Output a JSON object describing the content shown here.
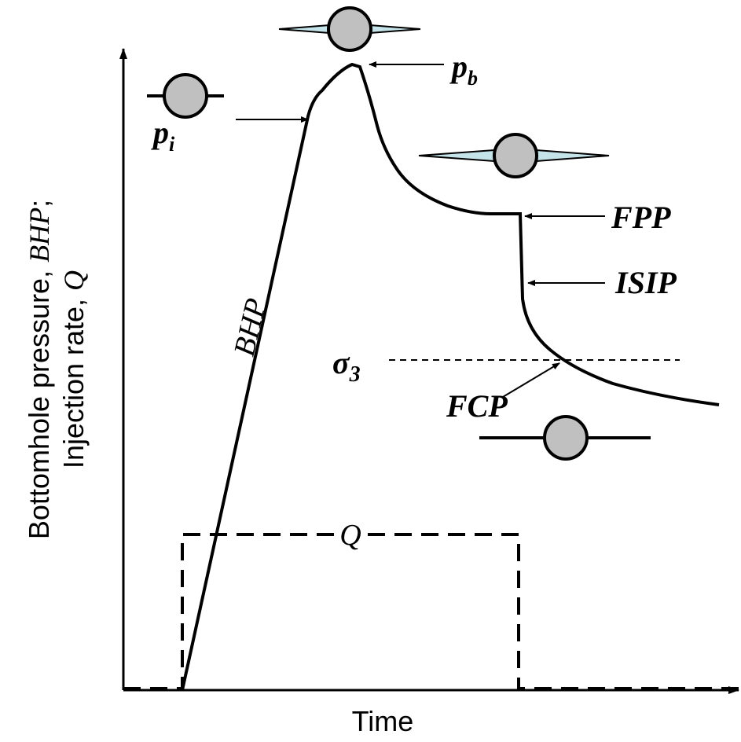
{
  "axes": {
    "x_label": "Time",
    "y_label": {
      "line1": [
        "Bottomhole pressure, ",
        "BHP",
        ";"
      ],
      "line2": [
        "Injection rate, ",
        "Q"
      ]
    }
  },
  "labels": {
    "p_i": {
      "base": "p",
      "sub": "i"
    },
    "p_b": {
      "base": "p",
      "sub": "b"
    },
    "sigma_3": {
      "base": "σ",
      "sub": "3"
    },
    "fpp": "FPP",
    "isip": "ISIP",
    "fcp": "FCP",
    "bhp": "BHP",
    "q": "Q"
  }
}
